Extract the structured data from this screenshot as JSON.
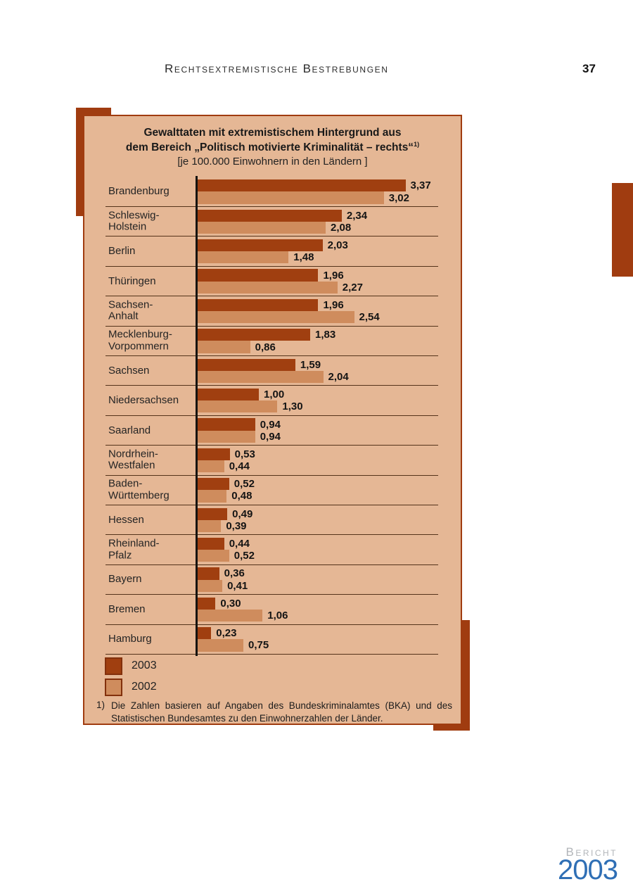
{
  "page": {
    "header_title": "Rechtsextremistische Bestrebungen",
    "page_number": "37"
  },
  "colors": {
    "accent_dark": "#a03c10",
    "panel_bg": "#e5b795",
    "bar_2003": "#a03f10",
    "bar_2002": "#cf8c5d",
    "logo_gray": "#b2b5b9",
    "logo_blue": "#2f6fb5"
  },
  "chart_box": {
    "title_line1": "Gewalttaten mit extremistischem Hintergrund aus",
    "title_line2": "dem Bereich „Politisch motivierte Kriminalität – rechts“",
    "title_superscript": "1)",
    "subtitle": "[je 100.000 Einwohnern in den Ländern ]",
    "legend": [
      {
        "label": "2003"
      },
      {
        "label": "2002"
      }
    ],
    "footnote_marker": "1)",
    "footnote_text": "Die Zahlen basieren auf Angaben des Bundeskriminalamtes (BKA) und des Statistischen Bundesamtes zu den Einwohnerzahlen der Länder."
  },
  "chart_data": {
    "type": "bar",
    "orientation": "horizontal",
    "title": "Gewalttaten mit extremistischem Hintergrund aus dem Bereich „Politisch motivierte Kriminalität – rechts“ [je 100.000 Einwohnern in den Ländern]",
    "xlim": [
      0,
      3.6
    ],
    "grid": false,
    "legend_position": "bottom-left",
    "categories": [
      "Brandenburg",
      "Schleswig-Holstein",
      "Berlin",
      "Thüringen",
      "Sachsen-Anhalt",
      "Mecklenburg-Vorpommern",
      "Sachsen",
      "Niedersachsen",
      "Saarland",
      "Nordrhein-Westfalen",
      "Baden-Württemberg",
      "Hessen",
      "Rheinland-Pfalz",
      "Bayern",
      "Bremen",
      "Hamburg"
    ],
    "category_label_lines": [
      [
        "Brandenburg"
      ],
      [
        "Schleswig-",
        "Holstein"
      ],
      [
        "Berlin"
      ],
      [
        "Thüringen"
      ],
      [
        "Sachsen-",
        "Anhalt"
      ],
      [
        "Mecklenburg-",
        "Vorpommern"
      ],
      [
        "Sachsen"
      ],
      [
        "Niedersachsen"
      ],
      [
        "Saarland"
      ],
      [
        "Nordrhein-",
        "Westfalen"
      ],
      [
        "Baden-",
        "Württemberg"
      ],
      [
        "Hessen"
      ],
      [
        "Rheinland-",
        "Pfalz"
      ],
      [
        "Bayern"
      ],
      [
        "Bremen"
      ],
      [
        "Hamburg"
      ]
    ],
    "series": [
      {
        "name": "2003",
        "values": [
          3.37,
          2.34,
          2.03,
          1.96,
          1.96,
          1.83,
          1.59,
          1.0,
          0.94,
          0.53,
          0.52,
          0.49,
          0.44,
          0.36,
          0.3,
          0.23
        ],
        "labels": [
          "3,37",
          "2,34",
          "2,03",
          "1,96",
          "1,96",
          "1,83",
          "1,59",
          "1,00",
          "0,94",
          "0,53",
          "0,52",
          "0,49",
          "0,44",
          "0,36",
          "0,30",
          "0,23"
        ]
      },
      {
        "name": "2002",
        "values": [
          3.02,
          2.08,
          1.48,
          2.27,
          2.54,
          0.86,
          2.04,
          1.3,
          0.94,
          0.44,
          0.48,
          0.39,
          0.52,
          0.41,
          1.06,
          0.75
        ],
        "labels": [
          "3,02",
          "2,08",
          "1,48",
          "2,27",
          "2,54",
          "0,86",
          "2,04",
          "1,30",
          "0,94",
          "0,44",
          "0,48",
          "0,39",
          "0,52",
          "0,41",
          "1,06",
          "0,75"
        ]
      }
    ]
  },
  "logo": {
    "word": "Bericht",
    "year": "2003"
  }
}
